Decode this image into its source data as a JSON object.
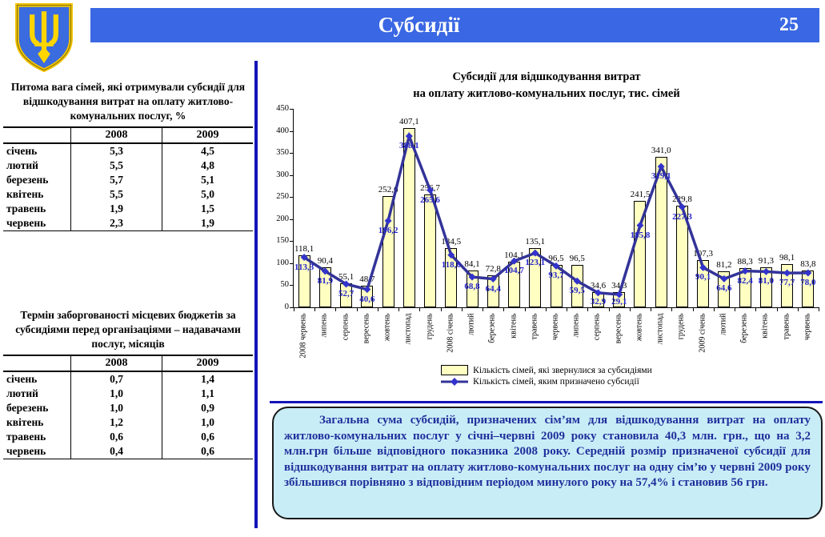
{
  "header": {
    "title": "Субсидії",
    "page_number": "25"
  },
  "tables": [
    {
      "title": "Питома вага сімей, які отримували субсидії для відшкодування витрат на оплату житлово-комунальних послуг, %",
      "columns": [
        "2008",
        "2009"
      ],
      "rows": [
        {
          "label": "січень",
          "values": [
            "5,3",
            "4,5"
          ]
        },
        {
          "label": "лютий",
          "values": [
            "5,5",
            "4,8"
          ]
        },
        {
          "label": "березень",
          "values": [
            "5,7",
            "5,1"
          ]
        },
        {
          "label": "квітень",
          "values": [
            "5,5",
            "5,0"
          ]
        },
        {
          "label": "травень",
          "values": [
            "1,9",
            "1,5"
          ]
        },
        {
          "label": "червень",
          "values": [
            "2,3",
            "1,9"
          ]
        }
      ]
    },
    {
      "title": "Термін заборгованості місцевих бюджетів за субсидіями перед організаціями – надавачами послуг, місяців",
      "columns": [
        "2008",
        "2009"
      ],
      "rows": [
        {
          "label": "січень",
          "values": [
            "0,7",
            "1,4"
          ]
        },
        {
          "label": "лютий",
          "values": [
            "1,0",
            "1,1"
          ]
        },
        {
          "label": "березень",
          "values": [
            "1,0",
            "0,9"
          ]
        },
        {
          "label": "квітень",
          "values": [
            "1,2",
            "1,0"
          ]
        },
        {
          "label": "травень",
          "values": [
            "0,6",
            "0,6"
          ]
        },
        {
          "label": "червень",
          "values": [
            "0,4",
            "0,6"
          ]
        }
      ]
    }
  ],
  "chart_data": {
    "type": "bar+line",
    "title": "Субсидії для відшкодування витрат на оплату житлово-комунальних послуг, тис. сімей",
    "title_lines": [
      "Субсидії для відшкодування витрат",
      "на оплату житлово-комунальних послуг, тис. сімей"
    ],
    "categories": [
      "2008 червень",
      "липень",
      "серпень",
      "вересень",
      "жовтень",
      "листопад",
      "грудень",
      "2008 січень",
      "лютий",
      "березень",
      "квітень",
      "травень",
      "червень",
      "липень",
      "серпень",
      "вересень",
      "жовтень",
      "листопад",
      "грудень",
      "2009 січень",
      "лютий",
      "березень",
      "квітень",
      "травень",
      "червень"
    ],
    "series": [
      {
        "name": "Кількість сімей, які звернулися за субсидіями",
        "mark": "bar",
        "color": "#ffffc2",
        "values": [
          118.1,
          90.4,
          55.1,
          48.7,
          252.6,
          407.1,
          256.7,
          134.5,
          84.1,
          72.8,
          104.1,
          135.1,
          96.5,
          96.5,
          34.6,
          34.3,
          241.5,
          341.0,
          229.8,
          107.3,
          81.2,
          88.3,
          91.3,
          98.1,
          83.8
        ]
      },
      {
        "name": "Кількість сімей, яким призначено субсидії",
        "mark": "line",
        "color": "#333399",
        "values": [
          113.3,
          81.9,
          52.7,
          40.6,
          196.2,
          388.1,
          265.6,
          118.6,
          68.8,
          64.4,
          104.7,
          123.1,
          93.7,
          59.5,
          32.9,
          29.1,
          185.8,
          319.1,
          227.3,
          90.1,
          64.6,
          82.4,
          81.0,
          77.7,
          78.0
        ]
      }
    ],
    "xlabel": "",
    "ylabel": "",
    "ylim": [
      0,
      450
    ],
    "ytick_step": 50,
    "grid": false,
    "legend_position": "bottom"
  },
  "note": {
    "text": "Загальна сума субсидій, призначених сім’ям для відшкодування витрат на оплату житлово-комунальних послуг у січні–червні 2009 року становила 40,3 млн. грн., що на 3,2 млн.грн більше відповідного показника 2008 року. Середній розмір призначеної субсидії для відшкодування витрат на оплату житлово-комунальних послуг на одну сім’ю у червні 2009 року збільшився порівняно з відповідним періодом минулого року на 57,4% і становив 56 грн."
  },
  "colors": {
    "header_bar": "#3a67e3",
    "divider": "#1414b8",
    "bar_fill": "#ffffc2",
    "line": "#333399",
    "line_marker": "#3333cc",
    "line_label": "#2525cc",
    "note_background": "#c9edf7",
    "note_text": "#1f2f9b"
  }
}
